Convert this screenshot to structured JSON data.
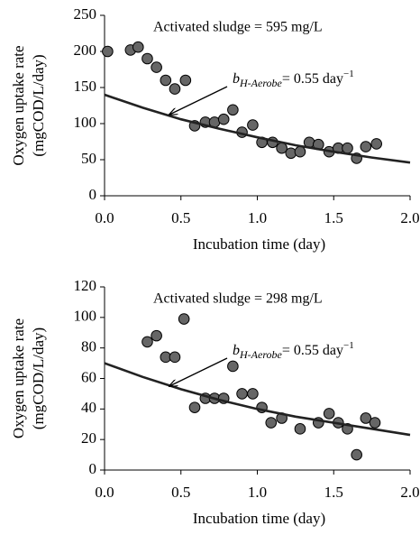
{
  "chart_data": [
    {
      "type": "scatter",
      "annotations": [
        {
          "text": "Activated sludge = 595 mg/L"
        },
        {
          "parts": [
            "b",
            "H-Aerobe",
            "= 0.55 day",
            "−1"
          ]
        }
      ],
      "xlabel": "Incubation time (day)",
      "ylabel": [
        "Oxygen uptake rate",
        "(mgCOD/L/day)"
      ],
      "xlim": [
        0,
        2
      ],
      "xticks": [
        {
          "value": 0,
          "label": "0.0"
        },
        {
          "value": 0.5,
          "label": "0.5"
        },
        {
          "value": 1,
          "label": "1.0"
        },
        {
          "value": 1.5,
          "label": "1.5"
        },
        {
          "value": 2,
          "label": "2.0"
        }
      ],
      "ylim": [
        0,
        250
      ],
      "yticks": [
        0,
        50,
        100,
        150,
        200,
        250
      ],
      "series": [
        {
          "type": "scatter",
          "color": "#666666",
          "x": [
            0.02,
            0.17,
            0.22,
            0.28,
            0.34,
            0.4,
            0.46,
            0.53,
            0.59,
            0.66,
            0.72,
            0.78,
            0.84,
            0.9,
            0.97,
            1.03,
            1.1,
            1.16,
            1.22,
            1.28,
            1.34,
            1.4,
            1.47,
            1.53,
            1.59,
            1.65,
            1.71,
            1.78
          ],
          "values": [
            200,
            202,
            206,
            190,
            178,
            160,
            148,
            160,
            97,
            102,
            102,
            106,
            119,
            88,
            98,
            74,
            74,
            66,
            59,
            61,
            74,
            71,
            61,
            66,
            66,
            52,
            68,
            72
          ]
        },
        {
          "type": "line",
          "color": "#222222",
          "x": [
            0,
            0.25,
            0.5,
            0.75,
            1,
            1.25,
            1.5,
            1.75,
            2
          ],
          "values": [
            140,
            122,
            106,
            93,
            81,
            70,
            61,
            53,
            46
          ]
        }
      ]
    },
    {
      "type": "scatter",
      "annotations": [
        {
          "text": "Activated sludge = 298 mg/L"
        },
        {
          "parts": [
            "b",
            "H-Aerobe",
            "= 0.55 day",
            "−1"
          ]
        }
      ],
      "xlabel": "Incubation time (day)",
      "ylabel": [
        "Oxygen uptake rate",
        "(mgCOD/L/day)"
      ],
      "xlim": [
        0,
        2
      ],
      "xticks": [
        {
          "value": 0,
          "label": "0.0"
        },
        {
          "value": 0.5,
          "label": "0.5"
        },
        {
          "value": 1,
          "label": "1.0"
        },
        {
          "value": 1.5,
          "label": "1.5"
        },
        {
          "value": 2,
          "label": "2.0"
        }
      ],
      "ylim": [
        0,
        120
      ],
      "yticks": [
        0,
        20,
        40,
        60,
        80,
        100,
        120
      ],
      "series": [
        {
          "type": "scatter",
          "color": "#666666",
          "x": [
            0.28,
            0.34,
            0.4,
            0.46,
            0.52,
            0.59,
            0.66,
            0.72,
            0.78,
            0.84,
            0.9,
            0.97,
            1.03,
            1.09,
            1.16,
            1.28,
            1.4,
            1.47,
            1.53,
            1.59,
            1.65,
            1.71,
            1.77
          ],
          "values": [
            84,
            88,
            74,
            74,
            99,
            41,
            47,
            47,
            47,
            68,
            50,
            50,
            41,
            31,
            34,
            27,
            31,
            37,
            31,
            27,
            10,
            34,
            31
          ]
        },
        {
          "type": "line",
          "color": "#222222",
          "x": [
            0,
            0.25,
            0.5,
            0.75,
            1,
            1.25,
            1.5,
            1.75,
            2
          ],
          "values": [
            70,
            61,
            53,
            46,
            40,
            35,
            31,
            27,
            23
          ]
        }
      ]
    }
  ]
}
